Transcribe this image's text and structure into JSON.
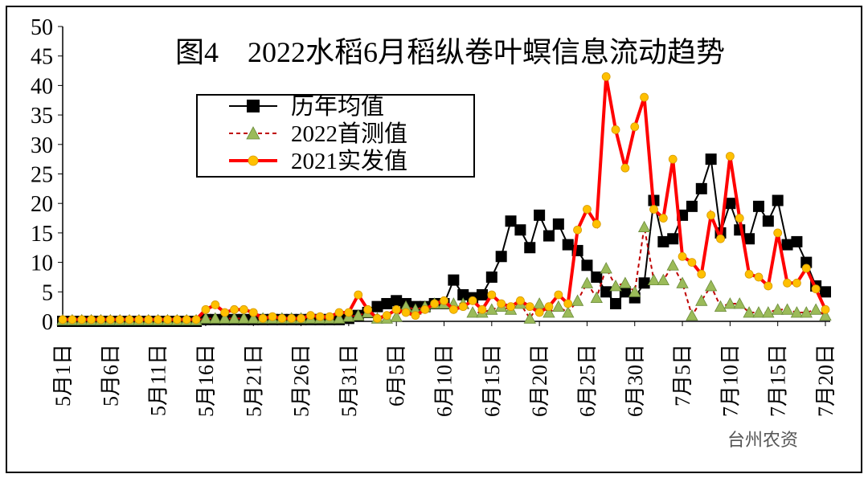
{
  "chart_data": {
    "type": "line",
    "title": "图4　2022水稻6月稻纵卷叶螟信息流动趋势",
    "watermark": "台州农资",
    "categories": [
      "5月1日",
      null,
      null,
      null,
      null,
      "5月6日",
      null,
      null,
      null,
      null,
      "5月11日",
      null,
      null,
      null,
      null,
      "5月16日",
      null,
      null,
      null,
      null,
      "5月21日",
      null,
      null,
      null,
      null,
      "5月26日",
      null,
      null,
      null,
      null,
      "5月31日",
      null,
      null,
      null,
      null,
      "6月5日",
      null,
      null,
      null,
      null,
      "6月10日",
      null,
      null,
      null,
      null,
      "6月15日",
      null,
      null,
      null,
      null,
      "6月20日",
      null,
      null,
      null,
      null,
      "6月25日",
      null,
      null,
      null,
      null,
      "6月30日",
      null,
      null,
      null,
      null,
      "7月5日",
      null,
      null,
      null,
      null,
      "7月10日",
      null,
      null,
      null,
      null,
      "7月15日",
      null,
      null,
      null,
      null,
      "7月20日"
    ],
    "series": [
      {
        "name": "历年均值",
        "color": "#000000",
        "marker": "square",
        "values": [
          0,
          0,
          0,
          0,
          0,
          0,
          0,
          0,
          0,
          0,
          0,
          0,
          0,
          0,
          0,
          0.3,
          0.3,
          0.3,
          0.3,
          0.3,
          0.3,
          0.3,
          0.3,
          0.3,
          0.3,
          0.3,
          0.3,
          0.3,
          0.3,
          0.3,
          0.5,
          1,
          1.5,
          2.5,
          3,
          3.5,
          3,
          2.5,
          2.5,
          3,
          3,
          7,
          4.5,
          4,
          4.5,
          7.5,
          11,
          17,
          15.5,
          12.5,
          18,
          14.5,
          16.5,
          13,
          12,
          9.5,
          7.5,
          5,
          3,
          5,
          4,
          6.5,
          20.5,
          13.5,
          14,
          18,
          19.5,
          22.5,
          27.5,
          15,
          20,
          15.5,
          14,
          19.5,
          17,
          20.5,
          13,
          13.5,
          10,
          6,
          5
        ]
      },
      {
        "name": "2022首测值",
        "color": "#c00000",
        "marker_color": "#9bbb59",
        "marker": "triangle",
        "dashed": true,
        "values": [
          0.2,
          0.2,
          0.2,
          0.2,
          0.2,
          0.2,
          0.2,
          0.2,
          0.2,
          0.2,
          0.2,
          0.2,
          0.2,
          0.2,
          0.2,
          0.5,
          0.5,
          0.5,
          0.5,
          0.5,
          0.5,
          0.5,
          0.5,
          0.5,
          0.5,
          0.5,
          0.5,
          0.5,
          0.5,
          0.5,
          0.8,
          1,
          1.5,
          0.5,
          0.5,
          0.8,
          2.5,
          2,
          2.5,
          3,
          3,
          3,
          3,
          1.5,
          1.5,
          2,
          2.5,
          2,
          3,
          0.5,
          3,
          1.5,
          2.5,
          1.5,
          3.5,
          6.5,
          4,
          9,
          6,
          6.5,
          5,
          16,
          7,
          7,
          9.5,
          6.5,
          1,
          3.5,
          6,
          2.5,
          3,
          3,
          1.5,
          1.5,
          1.5,
          2,
          2,
          1.5,
          1.5,
          2,
          1
        ]
      },
      {
        "name": "2021实发值",
        "color": "#ff0000",
        "marker_color": "#ffc000",
        "marker": "circle",
        "values": [
          0.3,
          0.3,
          0.3,
          0.3,
          0.3,
          0.3,
          0.3,
          0.3,
          0.3,
          0.3,
          0.3,
          0.3,
          0.3,
          0.3,
          0.3,
          2,
          2.8,
          1.5,
          2,
          2,
          1.5,
          0.5,
          0.8,
          0.5,
          0.5,
          0.5,
          1,
          0.8,
          0.8,
          1.5,
          1.5,
          4.5,
          2,
          0.5,
          1,
          2,
          1.5,
          1,
          2,
          3,
          3.5,
          2,
          2.5,
          3.5,
          2,
          4.5,
          3,
          2.5,
          3.5,
          2.5,
          1.5,
          2.5,
          4.5,
          3,
          15.5,
          19,
          16.5,
          41.5,
          32.5,
          26,
          33,
          38,
          19,
          17.5,
          27.5,
          11,
          10,
          8,
          18,
          14,
          28,
          17.5,
          8,
          7.5,
          6,
          15,
          6.5,
          6.5,
          9,
          5.5,
          2
        ]
      }
    ],
    "ylim": [
      0,
      50
    ],
    "yticks": [
      0,
      5,
      10,
      15,
      20,
      25,
      30,
      35,
      40,
      45,
      50
    ],
    "grid": false
  }
}
